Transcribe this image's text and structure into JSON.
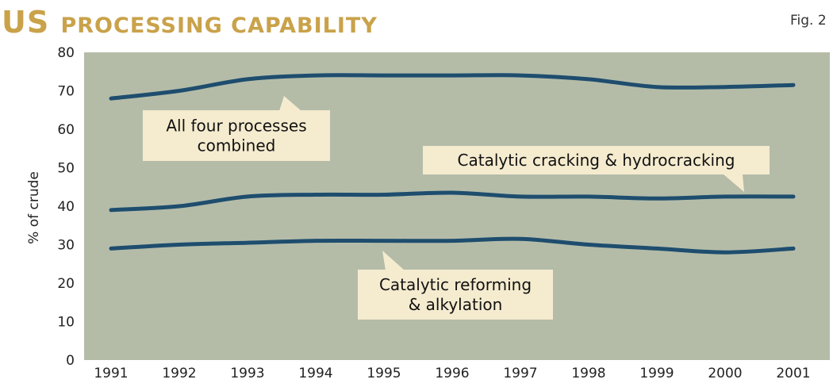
{
  "title_main": "US",
  "title_rest": "PROCESSING CAPABILITY",
  "fig_label": "Fig. 2",
  "colors": {
    "title": "#c9a24a",
    "plot_background": "#b4bca8",
    "line": "#1e4d6e",
    "callout_background": "#f5ebcf"
  },
  "chart_data": {
    "type": "line",
    "title": "US PROCESSING CAPABILITY",
    "ylabel": "% of crude",
    "xlabel": "",
    "ylim": [
      0,
      80
    ],
    "yticks": [
      "0",
      "10",
      "20",
      "30",
      "40",
      "50",
      "60",
      "70",
      "80"
    ],
    "x": [
      "1991",
      "1992",
      "1993",
      "1994",
      "1995",
      "1996",
      "1997",
      "1998",
      "1999",
      "2000",
      "2001"
    ],
    "grid": false,
    "series": [
      {
        "values": [
          68,
          70,
          73,
          74,
          74,
          74,
          74,
          73,
          71,
          71,
          71.5
        ]
      },
      {
        "values": [
          39,
          40,
          42.5,
          43,
          43,
          43.5,
          42.5,
          42.5,
          42,
          42.5,
          42.5
        ]
      },
      {
        "values": [
          29,
          30,
          30.5,
          31,
          31,
          31,
          31.5,
          30,
          29,
          28,
          29
        ]
      }
    ],
    "annotations": [
      {
        "lines": [
          "All four processes",
          "combined"
        ],
        "series_index": 0
      },
      {
        "lines": [
          "Catalytic cracking & hydrocracking"
        ],
        "series_index": 1
      },
      {
        "lines": [
          "Catalytic reforming",
          "& alkylation"
        ],
        "series_index": 2
      }
    ]
  }
}
